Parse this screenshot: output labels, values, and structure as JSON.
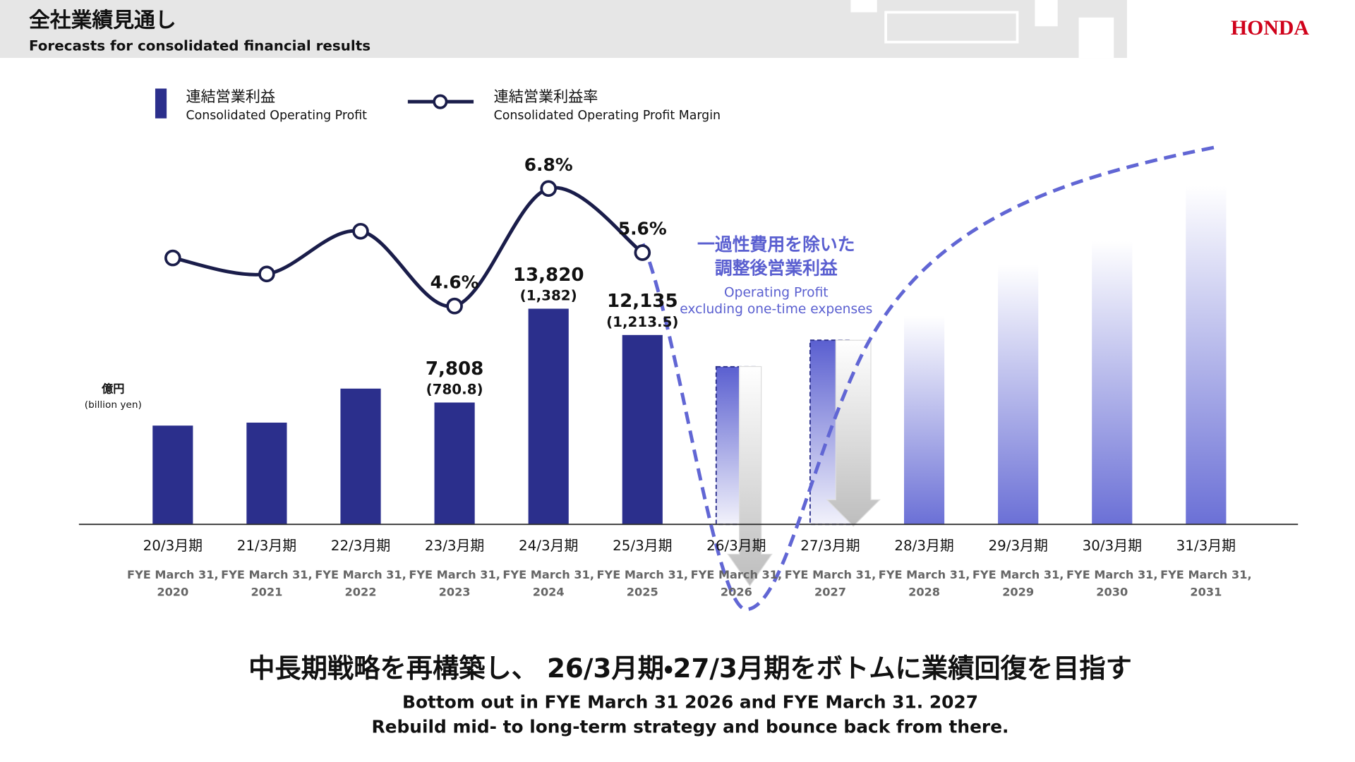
{
  "header": {
    "title": "全社業績見通し",
    "subtitle": "Forecasts for consolidated financial results",
    "logo": "HONDA"
  },
  "chart_data": {
    "type": "bar-line",
    "categories": [
      "20/3月期",
      "21/3月期",
      "22/3月期",
      "23/3月期",
      "24/3月期",
      "25/3月期",
      "26/3月期",
      "27/3月期",
      "28/3月期",
      "29/3月期",
      "30/3月期",
      "31/3月期"
    ],
    "fye_labels": [
      [
        "FYE March 31,",
        "2020"
      ],
      [
        "FYE March 31,",
        "2021"
      ],
      [
        "FYE March 31,",
        "2022"
      ],
      [
        "FYE March 31,",
        "2023"
      ],
      [
        "FYE March 31,",
        "2024"
      ],
      [
        "FYE March 31,",
        "2025"
      ],
      [
        "FYE March 31,",
        "2026"
      ],
      [
        "FYE March 31,",
        "2027"
      ],
      [
        "FYE March 31,",
        "2028"
      ],
      [
        "FYE March 31,",
        "2029"
      ],
      [
        "FYE March 31,",
        "2030"
      ],
      [
        "FYE March 31,",
        "2031"
      ]
    ],
    "y_unit": "億円",
    "y_unit_en": "(billion yen)",
    "series": [
      {
        "name": "連結営業利益",
        "name_en": "Consolidated Operating Profit",
        "color": "#2b2f8c",
        "values": [
          6330,
          6520,
          8700,
          7808,
          13820,
          12135,
          10100,
          11800,
          13370,
          16630,
          18150,
          21690
        ],
        "value_labels": [
          null,
          null,
          null,
          "7,808",
          "13,820",
          "12,135",
          null,
          null,
          null,
          null,
          null,
          null
        ],
        "secondary_value_labels": [
          null,
          null,
          null,
          "(780.8)",
          "(1,382)",
          "(1,213.5)",
          null,
          null,
          null,
          null,
          null,
          null
        ],
        "bar_fills": [
          "solid",
          "solid",
          "solid",
          "solid",
          "solid",
          "solid",
          "gradient-down",
          "gradient-down",
          "gradient-up",
          "gradient-up",
          "gradient-up",
          "gradient-up"
        ]
      },
      {
        "name": "連結営業利益率",
        "name_en": "Consolidated Operating Profit Margin",
        "color": "#1a1d4a",
        "values": [
          5.5,
          5.2,
          6.0,
          4.6,
          6.8,
          5.6,
          null,
          null,
          null,
          null,
          null,
          null
        ],
        "value_labels": [
          null,
          null,
          null,
          "4.6%",
          "6.8%",
          "5.6%",
          null,
          null,
          null,
          null,
          null,
          null
        ]
      }
    ],
    "annotation": {
      "lines": [
        "一過性費用を除いた",
        "調整後営業利益"
      ],
      "lines_en": [
        "Operating Profit",
        "excluding one-time expenses"
      ],
      "color": "#5a5fd0"
    }
  },
  "footer": {
    "headline": "中長期戦略を再構築し、 26/3月期・27/3月期をボトムに業績回復を目指す",
    "lines": [
      "Bottom out in FYE March 31 2026 and FYE March 31. 2027",
      "Rebuild mid- to long-term strategy and bounce back from there."
    ]
  }
}
